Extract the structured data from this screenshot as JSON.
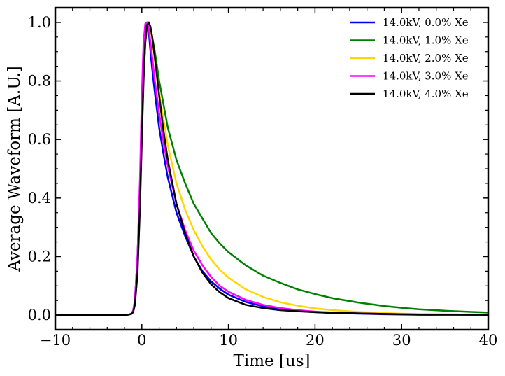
{
  "chart_data": {
    "type": "line",
    "title": "",
    "xlabel": "Time [us]",
    "ylabel": "Average Waveform [A.U.]",
    "xlim": [
      -10,
      40
    ],
    "ylim": [
      -0.05,
      1.05
    ],
    "x_ticks": [
      -10,
      0,
      10,
      20,
      30,
      40
    ],
    "x_tick_labels": [
      "−10",
      "0",
      "10",
      "20",
      "30",
      "40"
    ],
    "y_ticks": [
      0.0,
      0.2,
      0.4,
      0.6,
      0.8,
      1.0
    ],
    "y_tick_labels": [
      "0.0",
      "0.2",
      "0.4",
      "0.6",
      "0.8",
      "1.0"
    ],
    "grid": false,
    "legend_position": "top-right",
    "x": [
      -10,
      -8,
      -6,
      -4,
      -2,
      -1.5,
      -1.2,
      -1.0,
      -0.8,
      -0.5,
      -0.2,
      0.0,
      0.2,
      0.4,
      0.6,
      0.8,
      1.0,
      1.2,
      1.5,
      2,
      2.5,
      3,
      4,
      5,
      6,
      7,
      8,
      9,
      10,
      12,
      14,
      16,
      18,
      20,
      22,
      25,
      28,
      30,
      32,
      35,
      38,
      40
    ],
    "series": [
      {
        "name": "14.0kV, 0.0% Xe",
        "color": "#0000ee",
        "values": [
          0,
          0,
          0,
          0,
          0,
          0.002,
          0.005,
          0.015,
          0.05,
          0.2,
          0.45,
          0.7,
          0.9,
          0.98,
          1.0,
          0.97,
          0.9,
          0.84,
          0.76,
          0.64,
          0.55,
          0.47,
          0.35,
          0.27,
          0.2,
          0.15,
          0.115,
          0.09,
          0.07,
          0.045,
          0.03,
          0.02,
          0.014,
          0.01,
          0.007,
          0.005,
          0.003,
          0.002,
          0.001,
          0.0005,
          0.0002,
          0.0
        ]
      },
      {
        "name": "14.0kV, 1.0% Xe",
        "color": "#008000",
        "values": [
          0,
          0,
          0,
          0,
          0,
          0.002,
          0.005,
          0.012,
          0.04,
          0.16,
          0.4,
          0.62,
          0.82,
          0.93,
          0.985,
          1.0,
          0.98,
          0.95,
          0.9,
          0.8,
          0.72,
          0.64,
          0.53,
          0.45,
          0.38,
          0.33,
          0.28,
          0.245,
          0.215,
          0.17,
          0.135,
          0.11,
          0.088,
          0.072,
          0.058,
          0.043,
          0.031,
          0.025,
          0.02,
          0.015,
          0.011,
          0.009
        ]
      },
      {
        "name": "14.0kV, 2.0% Xe",
        "color": "#ffd700",
        "values": [
          0,
          0,
          0,
          0,
          0,
          0.002,
          0.005,
          0.012,
          0.04,
          0.16,
          0.4,
          0.62,
          0.82,
          0.93,
          0.985,
          1.0,
          0.98,
          0.94,
          0.87,
          0.76,
          0.67,
          0.58,
          0.45,
          0.36,
          0.29,
          0.235,
          0.19,
          0.155,
          0.128,
          0.088,
          0.062,
          0.044,
          0.032,
          0.023,
          0.017,
          0.011,
          0.007,
          0.005,
          0.004,
          0.003,
          0.002,
          0.001
        ]
      },
      {
        "name": "14.0kV, 3.0% Xe",
        "color": "#ff00ff",
        "values": [
          0,
          0,
          0,
          0,
          0,
          0.002,
          0.005,
          0.015,
          0.05,
          0.2,
          0.48,
          0.75,
          0.93,
          0.995,
          1.0,
          0.98,
          0.93,
          0.88,
          0.8,
          0.69,
          0.59,
          0.51,
          0.38,
          0.29,
          0.22,
          0.17,
          0.13,
          0.1,
          0.08,
          0.052,
          0.035,
          0.024,
          0.017,
          0.012,
          0.009,
          0.006,
          0.004,
          0.003,
          0.002,
          0.001,
          0.0005,
          0.0
        ]
      },
      {
        "name": "14.0kV, 4.0% Xe",
        "color": "#000000",
        "values": [
          0,
          0,
          0,
          0,
          0,
          0.002,
          0.004,
          0.01,
          0.035,
          0.14,
          0.38,
          0.6,
          0.8,
          0.93,
          0.99,
          1.0,
          0.985,
          0.95,
          0.88,
          0.75,
          0.63,
          0.53,
          0.38,
          0.28,
          0.2,
          0.145,
          0.105,
          0.078,
          0.058,
          0.035,
          0.024,
          0.017,
          0.013,
          0.01,
          0.008,
          0.006,
          0.004,
          0.003,
          0.002,
          0.002,
          0.001,
          0.001
        ]
      }
    ]
  }
}
